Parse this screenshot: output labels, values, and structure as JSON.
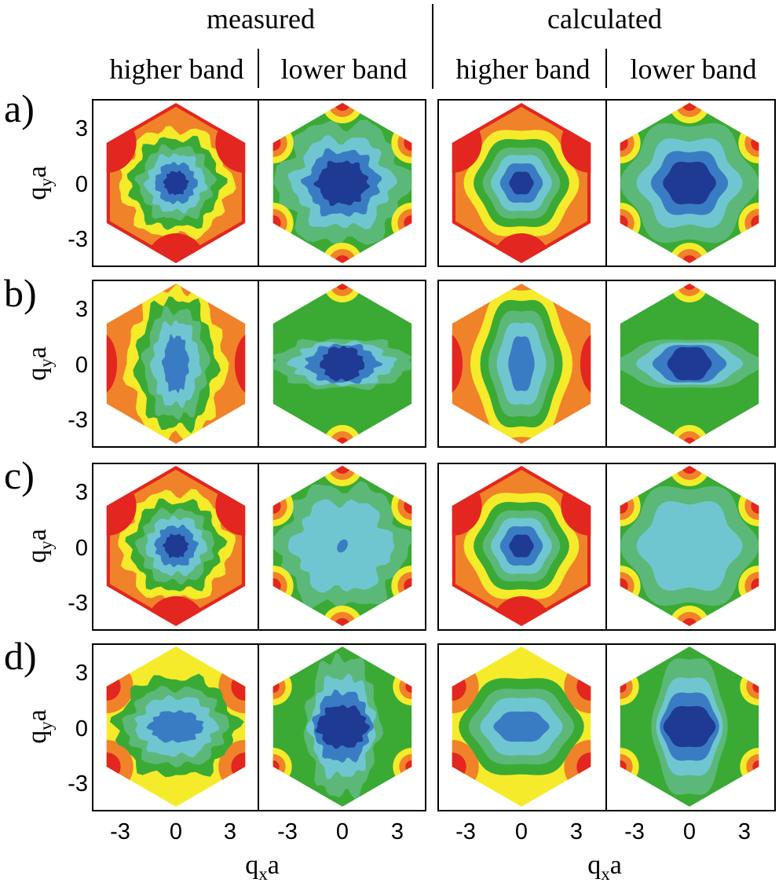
{
  "headers": {
    "measured": "measured",
    "calculated": "calculated",
    "higher_band": "higher band",
    "lower_band": "lower band"
  },
  "rows": [
    {
      "label": "a)"
    },
    {
      "label": "b)"
    },
    {
      "label": "c)"
    },
    {
      "label": "d)"
    }
  ],
  "y_axis": {
    "label_main": "q",
    "label_sub": "y",
    "label_tail": "a",
    "ticks": [
      "3",
      "0",
      "-3"
    ]
  },
  "x_axis": {
    "label_main": "q",
    "label_sub": "x",
    "label_tail": "a",
    "ticks": [
      "-3",
      "0",
      "3"
    ]
  },
  "colormap": [
    "#1f3a93",
    "#3a7cc4",
    "#70c6d0",
    "#5cb878",
    "#3aaa35",
    "#f5eb2a",
    "#f0822a",
    "#e3261f"
  ],
  "panels": [
    {
      "row": 0,
      "col": 0,
      "pattern": "center",
      "noisy": true,
      "scale": 1.0
    },
    {
      "row": 0,
      "col": 1,
      "pattern": "corner",
      "noisy": true,
      "scale": 1.0
    },
    {
      "row": 0,
      "col": 2,
      "pattern": "center",
      "noisy": false,
      "scale": 1.0
    },
    {
      "row": 0,
      "col": 3,
      "pattern": "corner",
      "noisy": false,
      "scale": 1.0
    },
    {
      "row": 1,
      "col": 0,
      "pattern": "vertical",
      "noisy": true,
      "scale": 1.0
    },
    {
      "row": 1,
      "col": 1,
      "pattern": "horizontal",
      "noisy": true,
      "scale": 1.0
    },
    {
      "row": 1,
      "col": 2,
      "pattern": "vertical",
      "noisy": false,
      "scale": 1.0
    },
    {
      "row": 1,
      "col": 3,
      "pattern": "horizontal",
      "noisy": false,
      "scale": 1.0
    },
    {
      "row": 2,
      "col": 0,
      "pattern": "center",
      "noisy": true,
      "scale": 1.0
    },
    {
      "row": 2,
      "col": 1,
      "pattern": "corner",
      "noisy": true,
      "scale": 0.85
    },
    {
      "row": 2,
      "col": 2,
      "pattern": "center",
      "noisy": false,
      "scale": 1.0
    },
    {
      "row": 2,
      "col": 3,
      "pattern": "corner",
      "noisy": false,
      "scale": 0.8
    },
    {
      "row": 3,
      "col": 0,
      "pattern": "horizontal",
      "noisy": true,
      "scale": 1.0
    },
    {
      "row": 3,
      "col": 1,
      "pattern": "vertical",
      "noisy": true,
      "scale": 1.0
    },
    {
      "row": 3,
      "col": 2,
      "pattern": "horizontal",
      "noisy": false,
      "scale": 1.0
    },
    {
      "row": 3,
      "col": 3,
      "pattern": "vertical",
      "noisy": false,
      "scale": 1.0
    }
  ]
}
